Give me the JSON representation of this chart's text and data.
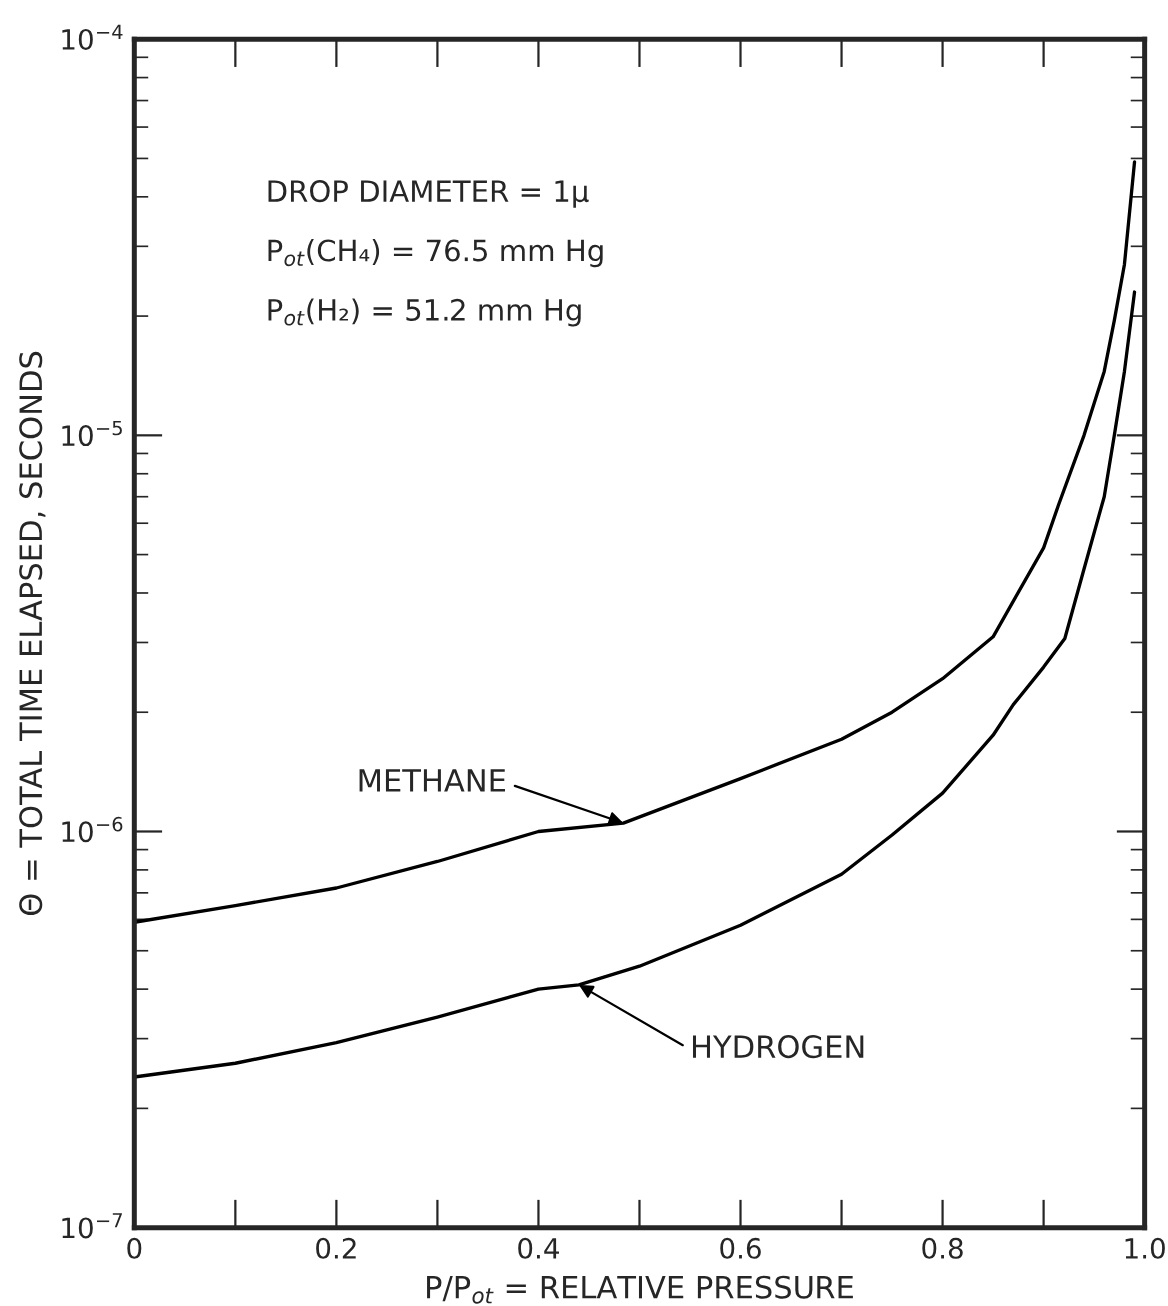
{
  "chart_data": {
    "type": "line",
    "xlabel": "P/P$_{ot}$ = RELATIVE PRESSURE",
    "ylabel": "Θ = TOTAL TIME ELAPSED, SECONDS",
    "log": "y",
    "grid": false,
    "legend": false,
    "marker": "none",
    "line_style": "solid",
    "xlim": [
      0,
      1.0
    ],
    "ylim": [
      1e-07,
      0.0001
    ],
    "xticks": [
      0,
      {
        "value": 0.1,
        "label": null
      },
      0.2,
      {
        "value": 0.3,
        "label": null
      },
      0.4,
      {
        "value": 0.5,
        "label": null
      },
      0.6,
      {
        "value": 0.7,
        "label": null
      },
      0.8,
      {
        "value": 0.9,
        "label": null
      },
      {
        "value": 1.0,
        "label": "1.0"
      }
    ],
    "yticks": [
      {
        "value": 1e-07,
        "label": "10$^{−7}$"
      },
      {
        "value": 1e-06,
        "label": "10$^{−6}$"
      },
      {
        "value": 1e-05,
        "label": "10$^{−5}$"
      },
      {
        "value": 0.0001,
        "label": "10$^{−4}$"
      }
    ],
    "series": [
      {
        "name": "METHANE",
        "color": "#000000",
        "x": [
          0,
          0.1,
          0.2,
          0.3,
          0.4,
          0.484,
          0.6,
          0.7,
          0.75,
          0.8,
          0.85,
          0.9,
          0.915,
          0.94,
          0.96,
          0.97,
          0.98,
          0.99
        ],
        "values": [
          5.9e-07,
          6.5e-07,
          7.2e-07,
          8.4e-07,
          1e-06,
          1.05e-06,
          1.36e-06,
          1.71e-06,
          2e-06,
          2.43e-06,
          3.1e-06,
          5.2e-06,
          6.7e-06,
          1e-05,
          1.45e-05,
          1.95e-05,
          2.7e-05,
          4.9e-05
        ]
      },
      {
        "name": "HYDROGEN",
        "color": "#000000",
        "x": [
          0,
          0.1,
          0.2,
          0.3,
          0.4,
          0.44,
          0.5,
          0.6,
          0.7,
          0.75,
          0.8,
          0.85,
          0.87,
          0.9,
          0.921,
          0.94,
          0.96,
          0.97,
          0.98,
          0.99
        ],
        "values": [
          2.4e-07,
          2.6e-07,
          2.93e-07,
          3.4e-07,
          4e-07,
          4.1e-07,
          4.57e-07,
          5.8e-07,
          7.8e-07,
          9.8e-07,
          1.25e-06,
          1.75e-06,
          2.09e-06,
          2.6e-06,
          3.07e-06,
          4.6e-06,
          7e-06,
          1e-05,
          1.45e-05,
          2.3e-05
        ]
      }
    ],
    "annotations": [
      "DROP DIAMETER = 1μ",
      "P$_{ot}$(CH₄) = 76.5 mm Hg",
      "P$_{ot}$(H₂) = 51.2 mm Hg"
    ]
  }
}
